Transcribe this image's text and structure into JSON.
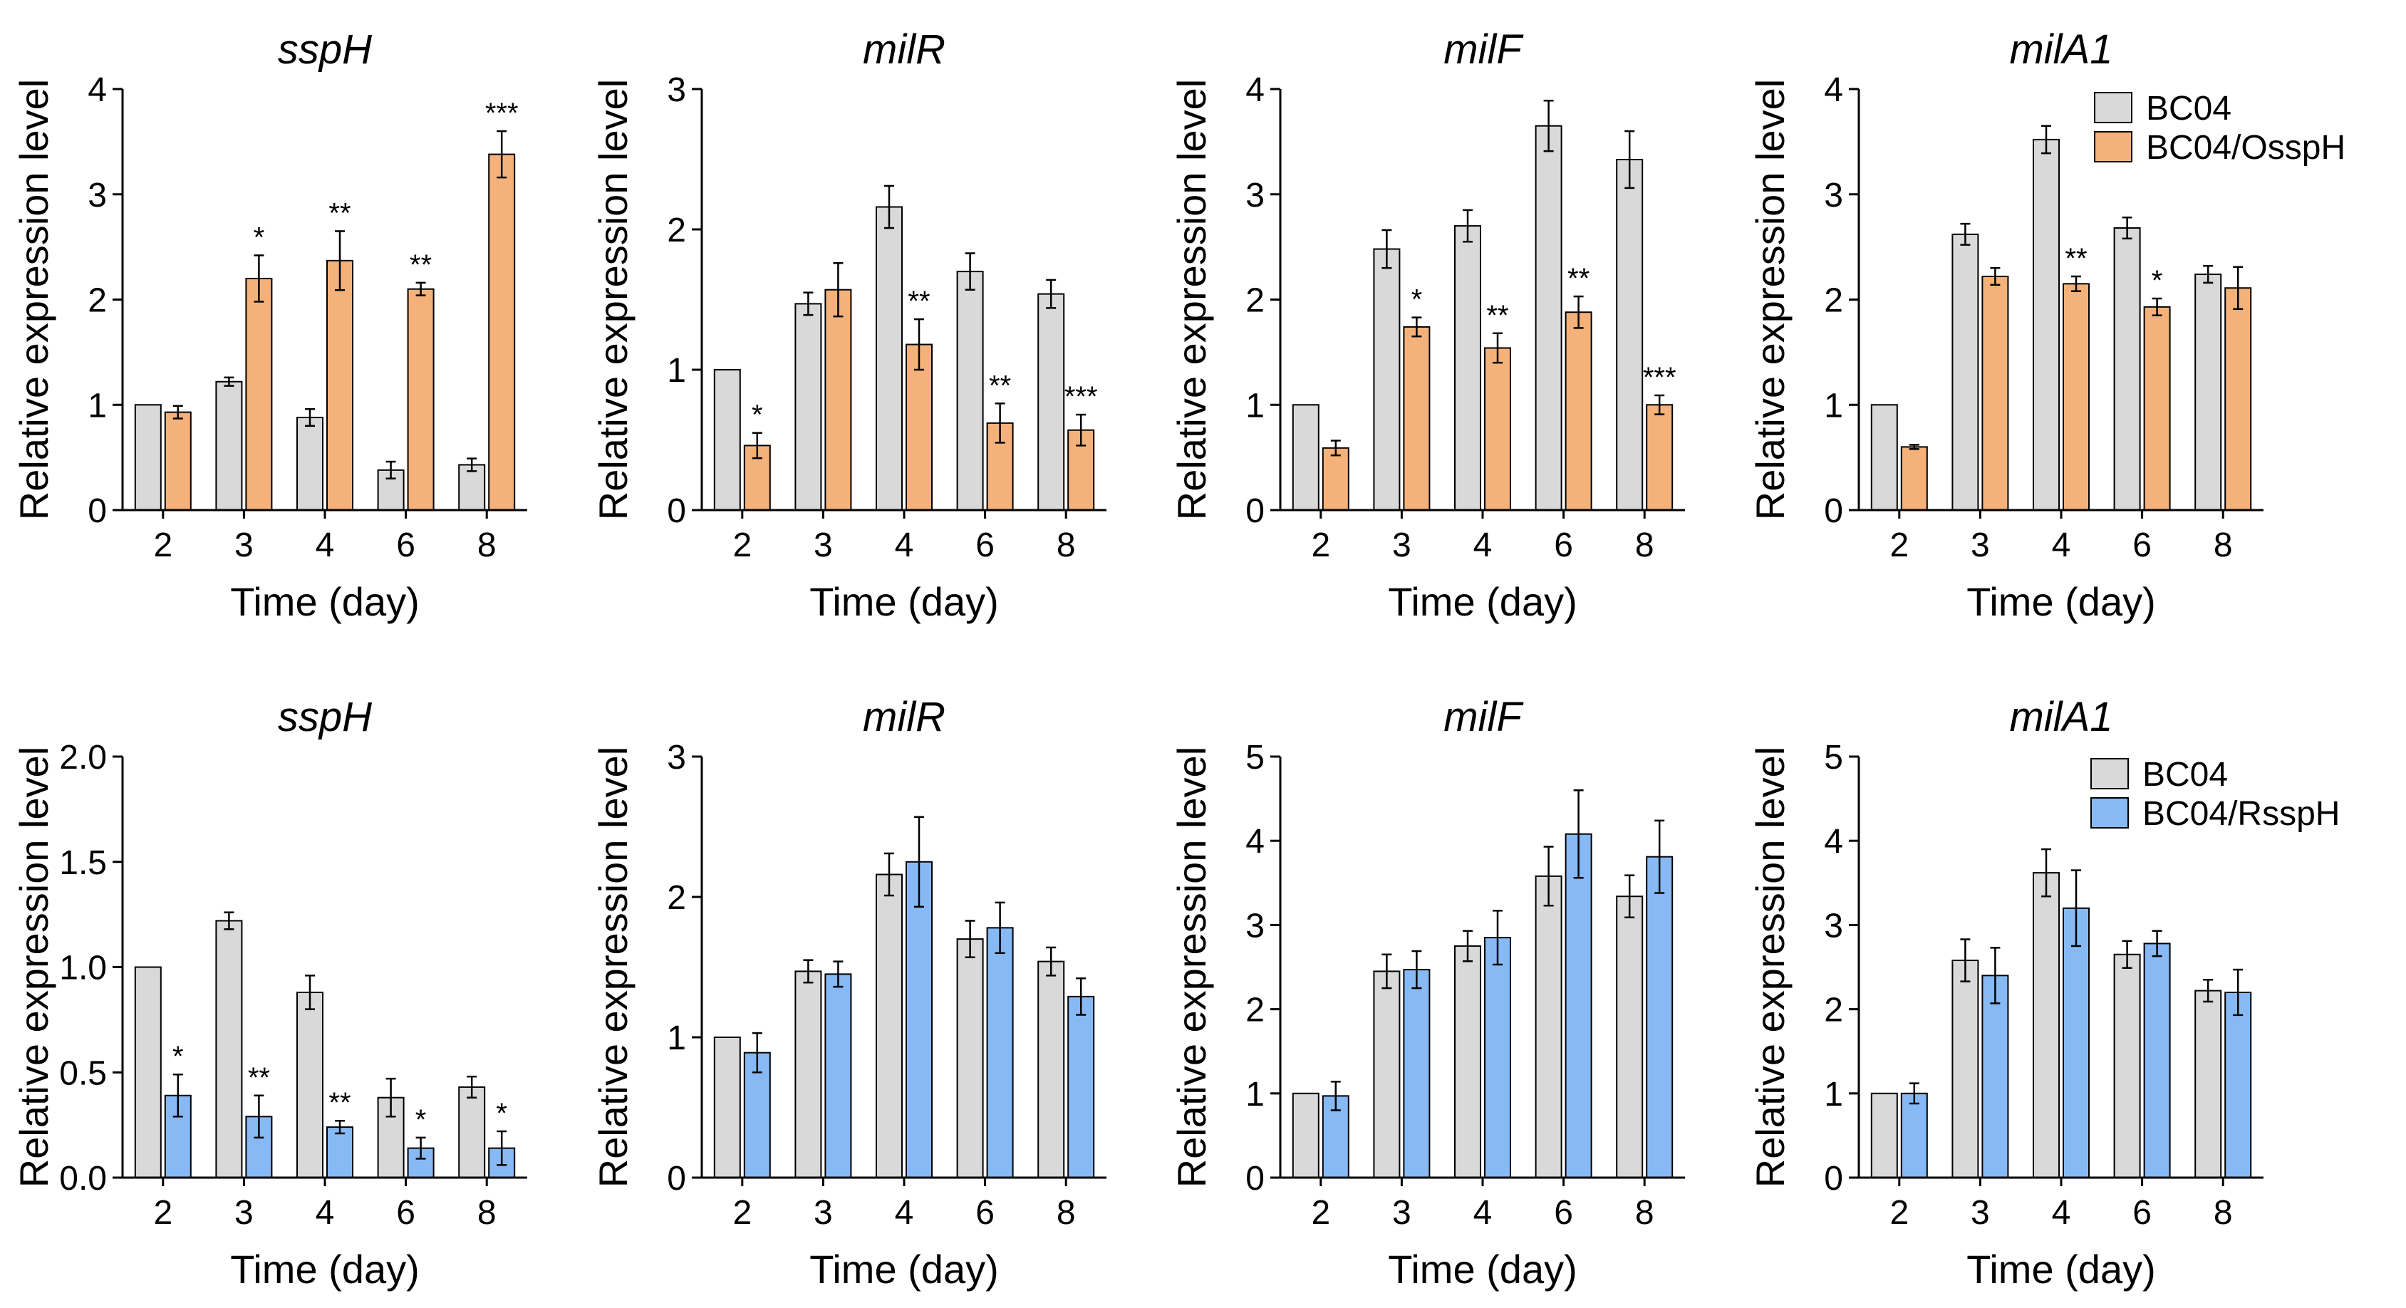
{
  "figure": {
    "legends": [
      {
        "row": 0,
        "entries": [
          {
            "label": "BC04",
            "color": "#d9d9d9"
          },
          {
            "label": "BC04/OsspH",
            "color": "#f4b27a"
          }
        ]
      },
      {
        "row": 1,
        "entries": [
          {
            "label": "BC04",
            "color": "#d9d9d9"
          },
          {
            "label": "BC04/RsspH",
            "color": "#87b9f5"
          }
        ]
      }
    ]
  },
  "chart_data": [
    {
      "type": "bar",
      "title": "sspH",
      "xlabel": "Time (day)",
      "ylabel": "Relative expression level",
      "categories": [
        "2",
        "3",
        "4",
        "6",
        "8"
      ],
      "ylim": [
        0,
        4
      ],
      "yticks": [
        "0",
        "1",
        "2",
        "3",
        "4"
      ],
      "series": [
        {
          "name": "BC04",
          "color": "#d9d9d9",
          "values": [
            1.0,
            1.22,
            0.88,
            0.38,
            0.43
          ],
          "errors": [
            0,
            0.04,
            0.08,
            0.08,
            0.06
          ],
          "sig": [
            "",
            "",
            "",
            "",
            ""
          ]
        },
        {
          "name": "BC04/OsspH",
          "color": "#f4b27a",
          "values": [
            0.93,
            2.2,
            2.37,
            2.1,
            3.38
          ],
          "errors": [
            0.06,
            0.22,
            0.28,
            0.06,
            0.22
          ],
          "sig": [
            "",
            "*",
            "**",
            "**",
            "***"
          ]
        }
      ]
    },
    {
      "type": "bar",
      "title": "milR",
      "xlabel": "Time (day)",
      "ylabel": "Relative expression level",
      "categories": [
        "2",
        "3",
        "4",
        "6",
        "8"
      ],
      "ylim": [
        0,
        3
      ],
      "yticks": [
        "0",
        "1",
        "2",
        "3"
      ],
      "series": [
        {
          "name": "BC04",
          "color": "#d9d9d9",
          "values": [
            1.0,
            1.47,
            2.16,
            1.7,
            1.54
          ],
          "errors": [
            0,
            0.08,
            0.15,
            0.13,
            0.1
          ],
          "sig": [
            "",
            "",
            "",
            "",
            ""
          ]
        },
        {
          "name": "BC04/OsspH",
          "color": "#f4b27a",
          "values": [
            0.46,
            1.57,
            1.18,
            0.62,
            0.57
          ],
          "errors": [
            0.09,
            0.19,
            0.18,
            0.14,
            0.11
          ],
          "sig": [
            "*",
            "",
            "**",
            "**",
            "***"
          ]
        }
      ]
    },
    {
      "type": "bar",
      "title": "milF",
      "xlabel": "Time (day)",
      "ylabel": "Relative expression level",
      "categories": [
        "2",
        "3",
        "4",
        "6",
        "8"
      ],
      "ylim": [
        0,
        4
      ],
      "yticks": [
        "0",
        "1",
        "2",
        "3",
        "4"
      ],
      "series": [
        {
          "name": "BC04",
          "color": "#d9d9d9",
          "values": [
            1.0,
            2.48,
            2.7,
            3.65,
            3.33
          ],
          "errors": [
            0,
            0.18,
            0.15,
            0.24,
            0.27
          ],
          "sig": [
            "",
            "",
            "",
            "",
            ""
          ]
        },
        {
          "name": "BC04/OsspH",
          "color": "#f4b27a",
          "values": [
            0.59,
            1.74,
            1.54,
            1.88,
            1.0
          ],
          "errors": [
            0.07,
            0.09,
            0.14,
            0.15,
            0.09
          ],
          "sig": [
            "",
            "*",
            "**",
            "**",
            "***"
          ]
        }
      ]
    },
    {
      "type": "bar",
      "title": "milA1",
      "xlabel": "Time (day)",
      "ylabel": "Relative expression level",
      "categories": [
        "2",
        "3",
        "4",
        "6",
        "8"
      ],
      "ylim": [
        0,
        4
      ],
      "yticks": [
        "0",
        "1",
        "2",
        "3",
        "4"
      ],
      "series": [
        {
          "name": "BC04",
          "color": "#d9d9d9",
          "values": [
            1.0,
            2.62,
            3.52,
            2.68,
            2.24
          ],
          "errors": [
            0,
            0.1,
            0.13,
            0.1,
            0.08
          ],
          "sig": [
            "",
            "",
            "",
            "",
            ""
          ]
        },
        {
          "name": "BC04/OsspH",
          "color": "#f4b27a",
          "values": [
            0.6,
            2.22,
            2.15,
            1.93,
            2.11
          ],
          "errors": [
            0.02,
            0.08,
            0.07,
            0.08,
            0.2
          ],
          "sig": [
            "",
            "",
            "**",
            "*",
            ""
          ]
        }
      ]
    },
    {
      "type": "bar",
      "title": "sspH",
      "xlabel": "Time (day)",
      "ylabel": "Relative expression level",
      "categories": [
        "2",
        "3",
        "4",
        "6",
        "8"
      ],
      "ylim": [
        0,
        2
      ],
      "yticks": [
        "0.0",
        "0.5",
        "1.0",
        "1.5",
        "2.0"
      ],
      "series": [
        {
          "name": "BC04",
          "color": "#d9d9d9",
          "values": [
            1.0,
            1.22,
            0.88,
            0.38,
            0.43
          ],
          "errors": [
            0,
            0.04,
            0.08,
            0.09,
            0.05
          ],
          "sig": [
            "",
            "",
            "",
            "",
            ""
          ]
        },
        {
          "name": "BC04/RsspH",
          "color": "#87b9f5",
          "values": [
            0.39,
            0.29,
            0.24,
            0.14,
            0.14
          ],
          "errors": [
            0.1,
            0.1,
            0.03,
            0.05,
            0.08
          ],
          "sig": [
            "*",
            "**",
            "**",
            "*",
            "*"
          ]
        }
      ]
    },
    {
      "type": "bar",
      "title": "milR",
      "xlabel": "Time (day)",
      "ylabel": "Relative expression level",
      "categories": [
        "2",
        "3",
        "4",
        "6",
        "8"
      ],
      "ylim": [
        0,
        3
      ],
      "yticks": [
        "0",
        "1",
        "2",
        "3"
      ],
      "series": [
        {
          "name": "BC04",
          "color": "#d9d9d9",
          "values": [
            1.0,
            1.47,
            2.16,
            1.7,
            1.54
          ],
          "errors": [
            0,
            0.08,
            0.15,
            0.13,
            0.1
          ],
          "sig": [
            "",
            "",
            "",
            "",
            ""
          ]
        },
        {
          "name": "BC04/RsspH",
          "color": "#87b9f5",
          "values": [
            0.89,
            1.45,
            2.25,
            1.78,
            1.29
          ],
          "errors": [
            0.14,
            0.09,
            0.32,
            0.18,
            0.13
          ],
          "sig": [
            "",
            "",
            "",
            "",
            ""
          ]
        }
      ]
    },
    {
      "type": "bar",
      "title": "milF",
      "xlabel": "Time (day)",
      "ylabel": "Relative expression level",
      "categories": [
        "2",
        "3",
        "4",
        "6",
        "8"
      ],
      "ylim": [
        0,
        5
      ],
      "yticks": [
        "0",
        "1",
        "2",
        "3",
        "4",
        "5"
      ],
      "series": [
        {
          "name": "BC04",
          "color": "#d9d9d9",
          "values": [
            1.0,
            2.45,
            2.75,
            3.58,
            3.34
          ],
          "errors": [
            0,
            0.2,
            0.18,
            0.35,
            0.25
          ],
          "sig": [
            "",
            "",
            "",
            "",
            ""
          ]
        },
        {
          "name": "BC04/RsspH",
          "color": "#87b9f5",
          "values": [
            0.97,
            2.47,
            2.85,
            4.08,
            3.81
          ],
          "errors": [
            0.17,
            0.22,
            0.32,
            0.52,
            0.43
          ],
          "sig": [
            "",
            "",
            "",
            "",
            ""
          ]
        }
      ]
    },
    {
      "type": "bar",
      "title": "milA1",
      "xlabel": "Time (day)",
      "ylabel": "Relative expression level",
      "categories": [
        "2",
        "3",
        "4",
        "6",
        "8"
      ],
      "ylim": [
        0,
        5
      ],
      "yticks": [
        "0",
        "1",
        "2",
        "3",
        "4",
        "5"
      ],
      "series": [
        {
          "name": "BC04",
          "color": "#d9d9d9",
          "values": [
            1.0,
            2.58,
            3.62,
            2.65,
            2.22
          ],
          "errors": [
            0,
            0.25,
            0.28,
            0.16,
            0.13
          ],
          "sig": [
            "",
            "",
            "",
            "",
            ""
          ]
        },
        {
          "name": "BC04/RsspH",
          "color": "#87b9f5",
          "values": [
            1.0,
            2.4,
            3.2,
            2.78,
            2.2
          ],
          "errors": [
            0.12,
            0.33,
            0.45,
            0.15,
            0.27
          ],
          "sig": [
            "",
            "",
            "",
            "",
            ""
          ]
        }
      ]
    }
  ]
}
